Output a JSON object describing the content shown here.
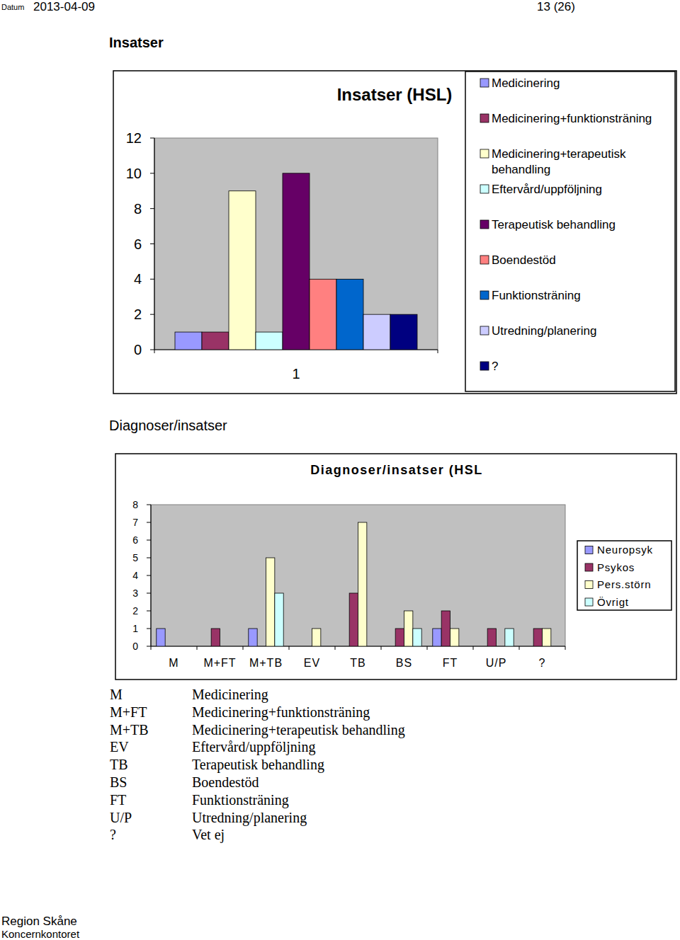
{
  "header": {
    "datum_label": "Datum",
    "date": "2013-04-09",
    "page": "13 (26)"
  },
  "headings": [
    "Insatser",
    "Diagnoser/insatser"
  ],
  "chart_data": [
    {
      "type": "bar",
      "title": "Insatser (HSL)",
      "categories": [
        "1"
      ],
      "series": [
        {
          "name": "Medicinering",
          "color": "#9999ff",
          "values": [
            1
          ]
        },
        {
          "name": "Medicinering+funktionsträning",
          "color": "#993366",
          "values": [
            1
          ]
        },
        {
          "name": "Medicinering+terapeutisk behandling",
          "color": "#ffffcc",
          "values": [
            9
          ]
        },
        {
          "name": "Eftervård/uppföljning",
          "color": "#ccffff",
          "values": [
            1
          ]
        },
        {
          "name": "Terapeutisk behandling",
          "color": "#660066",
          "values": [
            10
          ]
        },
        {
          "name": "Boendestöd",
          "color": "#ff8080",
          "values": [
            4
          ]
        },
        {
          "name": "Funktionsträning",
          "color": "#0066cc",
          "values": [
            4
          ]
        },
        {
          "name": "Utredning/planering",
          "color": "#ccccff",
          "values": [
            2
          ]
        },
        {
          "name": "?",
          "color": "#000080",
          "values": [
            2
          ]
        }
      ],
      "ylim": [
        0,
        12
      ],
      "yticks": [
        0,
        2,
        4,
        6,
        8,
        10,
        12
      ],
      "grid": false,
      "legend": "right"
    },
    {
      "type": "bar",
      "title": "Diagnoser/insatser (HSL",
      "categories": [
        "M",
        "M+FT",
        "M+TB",
        "EV",
        "TB",
        "BS",
        "FT",
        "U/P",
        "?"
      ],
      "series": [
        {
          "name": "Neuropsyk",
          "color": "#9999ff",
          "values": [
            1,
            0,
            1,
            0,
            0,
            0,
            1,
            0,
            0
          ]
        },
        {
          "name": "Psykos",
          "color": "#993366",
          "values": [
            0,
            1,
            0,
            0,
            3,
            1,
            2,
            1,
            1
          ]
        },
        {
          "name": "Pers.störn",
          "color": "#ffffcc",
          "values": [
            0,
            0,
            5,
            1,
            7,
            2,
            1,
            0,
            1
          ]
        },
        {
          "name": "Övrigt",
          "color": "#ccffff",
          "values": [
            0,
            0,
            3,
            0,
            0,
            1,
            0,
            1,
            0
          ]
        }
      ],
      "ylim": [
        0,
        8
      ],
      "yticks": [
        0,
        1,
        2,
        3,
        4,
        5,
        6,
        7,
        8
      ],
      "grid": false,
      "legend": "right"
    }
  ],
  "abbreviations": [
    [
      "M",
      "Medicinering"
    ],
    [
      "M+FT",
      "Medicinering+funktionsträning"
    ],
    [
      "M+TB",
      "Medicinering+terapeutisk behandling"
    ],
    [
      "EV",
      "Eftervård/uppföljning"
    ],
    [
      "TB",
      "Terapeutisk behandling"
    ],
    [
      "BS",
      "Boendestöd"
    ],
    [
      "FT",
      "Funktionsträning"
    ],
    [
      "U/P",
      "Utredning/planering"
    ],
    [
      "?",
      "Vet ej"
    ]
  ],
  "footer": [
    "Region Skåne",
    "Koncernkontoret"
  ]
}
